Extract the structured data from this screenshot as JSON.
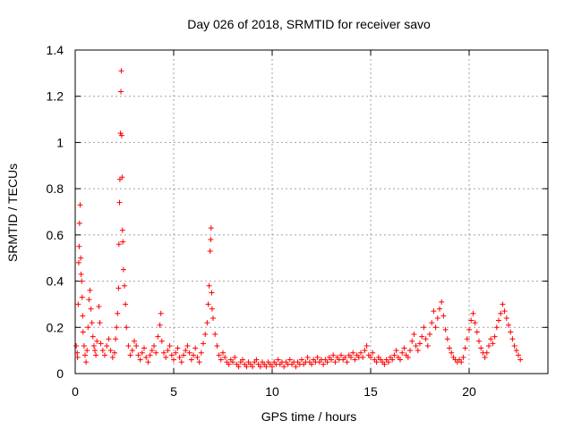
{
  "chart_data": {
    "type": "scatter",
    "title": "Day 026 of 2018, SRMTID for receiver savo",
    "xlabel": "GPS time / hours",
    "ylabel": "SRMTID / TECUs",
    "xlim": [
      0,
      24
    ],
    "ylim": [
      0,
      1.4
    ],
    "xticks": [
      0,
      5,
      10,
      15,
      20
    ],
    "yticks": [
      0,
      0.2,
      0.4,
      0.6,
      0.8,
      1,
      1.2,
      1.4
    ],
    "xtick_labels": [
      "0",
      "5",
      "10",
      "15",
      "20"
    ],
    "ytick_labels": [
      "0",
      "0.2",
      "0.4",
      "0.6",
      "0.8",
      "1",
      "1.2",
      "1.4"
    ],
    "grid": true,
    "marker": "+",
    "color": "#ff0000",
    "series": [
      {
        "name": "SRMTID",
        "points": [
          [
            0.05,
            0.12
          ],
          [
            0.1,
            0.09
          ],
          [
            0.12,
            0.07
          ],
          [
            0.15,
            0.3
          ],
          [
            0.18,
            0.48
          ],
          [
            0.2,
            0.55
          ],
          [
            0.22,
            0.65
          ],
          [
            0.25,
            0.73
          ],
          [
            0.28,
            0.5
          ],
          [
            0.3,
            0.43
          ],
          [
            0.33,
            0.4
          ],
          [
            0.35,
            0.33
          ],
          [
            0.38,
            0.25
          ],
          [
            0.4,
            0.18
          ],
          [
            0.45,
            0.12
          ],
          [
            0.5,
            0.08
          ],
          [
            0.55,
            0.05
          ],
          [
            0.6,
            0.1
          ],
          [
            0.65,
            0.2
          ],
          [
            0.7,
            0.32
          ],
          [
            0.75,
            0.36
          ],
          [
            0.8,
            0.28
          ],
          [
            0.85,
            0.22
          ],
          [
            0.9,
            0.16
          ],
          [
            0.95,
            0.12
          ],
          [
            1.0,
            0.1
          ],
          [
            1.05,
            0.08
          ],
          [
            1.1,
            0.14
          ],
          [
            1.2,
            0.29
          ],
          [
            1.25,
            0.22
          ],
          [
            1.3,
            0.13
          ],
          [
            1.4,
            0.1
          ],
          [
            1.5,
            0.08
          ],
          [
            1.6,
            0.12
          ],
          [
            1.7,
            0.15
          ],
          [
            1.8,
            0.1
          ],
          [
            1.9,
            0.07
          ],
          [
            2.0,
            0.09
          ],
          [
            2.05,
            0.15
          ],
          [
            2.1,
            0.2
          ],
          [
            2.15,
            0.26
          ],
          [
            2.2,
            0.37
          ],
          [
            2.22,
            0.56
          ],
          [
            2.25,
            0.74
          ],
          [
            2.27,
            0.84
          ],
          [
            2.3,
            1.04
          ],
          [
            2.32,
            1.22
          ],
          [
            2.34,
            1.31
          ],
          [
            2.36,
            1.03
          ],
          [
            2.38,
            0.85
          ],
          [
            2.4,
            0.62
          ],
          [
            2.42,
            0.57
          ],
          [
            2.45,
            0.45
          ],
          [
            2.5,
            0.38
          ],
          [
            2.55,
            0.3
          ],
          [
            2.6,
            0.2
          ],
          [
            2.7,
            0.12
          ],
          [
            2.8,
            0.08
          ],
          [
            2.9,
            0.1
          ],
          [
            3.0,
            0.14
          ],
          [
            3.1,
            0.12
          ],
          [
            3.2,
            0.08
          ],
          [
            3.3,
            0.06
          ],
          [
            3.4,
            0.09
          ],
          [
            3.5,
            0.11
          ],
          [
            3.6,
            0.07
          ],
          [
            3.7,
            0.05
          ],
          [
            3.8,
            0.08
          ],
          [
            3.9,
            0.1
          ],
          [
            4.0,
            0.12
          ],
          [
            4.1,
            0.09
          ],
          [
            4.2,
            0.16
          ],
          [
            4.3,
            0.21
          ],
          [
            4.35,
            0.26
          ],
          [
            4.4,
            0.14
          ],
          [
            4.5,
            0.09
          ],
          [
            4.6,
            0.07
          ],
          [
            4.7,
            0.1
          ],
          [
            4.8,
            0.12
          ],
          [
            4.9,
            0.08
          ],
          [
            5.0,
            0.06
          ],
          [
            5.1,
            0.09
          ],
          [
            5.2,
            0.11
          ],
          [
            5.3,
            0.07
          ],
          [
            5.4,
            0.05
          ],
          [
            5.5,
            0.08
          ],
          [
            5.6,
            0.1
          ],
          [
            5.7,
            0.12
          ],
          [
            5.8,
            0.09
          ],
          [
            5.9,
            0.06
          ],
          [
            6.0,
            0.08
          ],
          [
            6.1,
            0.11
          ],
          [
            6.2,
            0.07
          ],
          [
            6.3,
            0.05
          ],
          [
            6.4,
            0.09
          ],
          [
            6.5,
            0.13
          ],
          [
            6.6,
            0.17
          ],
          [
            6.7,
            0.22
          ],
          [
            6.75,
            0.3
          ],
          [
            6.8,
            0.38
          ],
          [
            6.85,
            0.53
          ],
          [
            6.88,
            0.58
          ],
          [
            6.9,
            0.63
          ],
          [
            6.93,
            0.35
          ],
          [
            6.95,
            0.28
          ],
          [
            7.0,
            0.24
          ],
          [
            7.1,
            0.17
          ],
          [
            7.2,
            0.12
          ],
          [
            7.3,
            0.08
          ],
          [
            7.4,
            0.06
          ],
          [
            7.5,
            0.09
          ],
          [
            7.6,
            0.07
          ],
          [
            7.7,
            0.05
          ],
          [
            7.8,
            0.04
          ],
          [
            7.9,
            0.06
          ],
          [
            8.0,
            0.05
          ],
          [
            8.1,
            0.07
          ],
          [
            8.2,
            0.04
          ],
          [
            8.3,
            0.03
          ],
          [
            8.4,
            0.05
          ],
          [
            8.5,
            0.06
          ],
          [
            8.6,
            0.04
          ],
          [
            8.7,
            0.03
          ],
          [
            8.8,
            0.05
          ],
          [
            8.9,
            0.04
          ],
          [
            9.0,
            0.03
          ],
          [
            9.1,
            0.05
          ],
          [
            9.2,
            0.06
          ],
          [
            9.3,
            0.04
          ],
          [
            9.4,
            0.03
          ],
          [
            9.5,
            0.05
          ],
          [
            9.6,
            0.04
          ],
          [
            9.7,
            0.03
          ],
          [
            9.8,
            0.05
          ],
          [
            9.9,
            0.04
          ],
          [
            10.0,
            0.03
          ],
          [
            10.1,
            0.05
          ],
          [
            10.2,
            0.04
          ],
          [
            10.3,
            0.06
          ],
          [
            10.4,
            0.04
          ],
          [
            10.5,
            0.05
          ],
          [
            10.6,
            0.03
          ],
          [
            10.7,
            0.05
          ],
          [
            10.8,
            0.04
          ],
          [
            10.9,
            0.06
          ],
          [
            11.0,
            0.04
          ],
          [
            11.1,
            0.05
          ],
          [
            11.2,
            0.03
          ],
          [
            11.3,
            0.05
          ],
          [
            11.4,
            0.04
          ],
          [
            11.5,
            0.06
          ],
          [
            11.6,
            0.04
          ],
          [
            11.7,
            0.05
          ],
          [
            11.8,
            0.07
          ],
          [
            11.9,
            0.05
          ],
          [
            12.0,
            0.04
          ],
          [
            12.1,
            0.06
          ],
          [
            12.2,
            0.05
          ],
          [
            12.3,
            0.07
          ],
          [
            12.4,
            0.05
          ],
          [
            12.5,
            0.06
          ],
          [
            12.6,
            0.04
          ],
          [
            12.7,
            0.06
          ],
          [
            12.8,
            0.05
          ],
          [
            12.9,
            0.07
          ],
          [
            13.0,
            0.06
          ],
          [
            13.1,
            0.08
          ],
          [
            13.2,
            0.05
          ],
          [
            13.3,
            0.07
          ],
          [
            13.4,
            0.06
          ],
          [
            13.5,
            0.08
          ],
          [
            13.6,
            0.06
          ],
          [
            13.7,
            0.07
          ],
          [
            13.8,
            0.05
          ],
          [
            13.9,
            0.08
          ],
          [
            14.0,
            0.07
          ],
          [
            14.1,
            0.09
          ],
          [
            14.2,
            0.06
          ],
          [
            14.3,
            0.08
          ],
          [
            14.4,
            0.07
          ],
          [
            14.5,
            0.09
          ],
          [
            14.6,
            0.07
          ],
          [
            14.7,
            0.1
          ],
          [
            14.8,
            0.12
          ],
          [
            14.9,
            0.08
          ],
          [
            15.0,
            0.07
          ],
          [
            15.1,
            0.09
          ],
          [
            15.2,
            0.06
          ],
          [
            15.3,
            0.05
          ],
          [
            15.4,
            0.07
          ],
          [
            15.5,
            0.06
          ],
          [
            15.6,
            0.05
          ],
          [
            15.7,
            0.04
          ],
          [
            15.8,
            0.06
          ],
          [
            15.9,
            0.05
          ],
          [
            16.0,
            0.07
          ],
          [
            16.1,
            0.06
          ],
          [
            16.2,
            0.08
          ],
          [
            16.3,
            0.1
          ],
          [
            16.4,
            0.07
          ],
          [
            16.5,
            0.06
          ],
          [
            16.6,
            0.09
          ],
          [
            16.7,
            0.11
          ],
          [
            16.8,
            0.08
          ],
          [
            16.9,
            0.07
          ],
          [
            17.0,
            0.1
          ],
          [
            17.1,
            0.14
          ],
          [
            17.2,
            0.17
          ],
          [
            17.3,
            0.12
          ],
          [
            17.4,
            0.1
          ],
          [
            17.5,
            0.13
          ],
          [
            17.6,
            0.16
          ],
          [
            17.7,
            0.2
          ],
          [
            17.8,
            0.15
          ],
          [
            17.9,
            0.12
          ],
          [
            18.0,
            0.17
          ],
          [
            18.1,
            0.22
          ],
          [
            18.2,
            0.27
          ],
          [
            18.3,
            0.2
          ],
          [
            18.4,
            0.24
          ],
          [
            18.5,
            0.28
          ],
          [
            18.6,
            0.31
          ],
          [
            18.7,
            0.25
          ],
          [
            18.8,
            0.19
          ],
          [
            18.9,
            0.15
          ],
          [
            19.0,
            0.11
          ],
          [
            19.1,
            0.09
          ],
          [
            19.2,
            0.07
          ],
          [
            19.3,
            0.06
          ],
          [
            19.4,
            0.05
          ],
          [
            19.5,
            0.06
          ],
          [
            19.6,
            0.05
          ],
          [
            19.7,
            0.07
          ],
          [
            19.8,
            0.11
          ],
          [
            19.9,
            0.15
          ],
          [
            20.0,
            0.19
          ],
          [
            20.1,
            0.23
          ],
          [
            20.2,
            0.26
          ],
          [
            20.3,
            0.22
          ],
          [
            20.4,
            0.18
          ],
          [
            20.5,
            0.14
          ],
          [
            20.6,
            0.11
          ],
          [
            20.7,
            0.09
          ],
          [
            20.8,
            0.07
          ],
          [
            20.9,
            0.09
          ],
          [
            21.0,
            0.12
          ],
          [
            21.1,
            0.15
          ],
          [
            21.2,
            0.13
          ],
          [
            21.3,
            0.16
          ],
          [
            21.4,
            0.2
          ],
          [
            21.5,
            0.23
          ],
          [
            21.6,
            0.26
          ],
          [
            21.7,
            0.3
          ],
          [
            21.8,
            0.27
          ],
          [
            21.9,
            0.24
          ],
          [
            22.0,
            0.21
          ],
          [
            22.1,
            0.18
          ],
          [
            22.2,
            0.15
          ],
          [
            22.3,
            0.12
          ],
          [
            22.4,
            0.1
          ],
          [
            22.5,
            0.08
          ],
          [
            22.6,
            0.06
          ]
        ]
      }
    ]
  }
}
